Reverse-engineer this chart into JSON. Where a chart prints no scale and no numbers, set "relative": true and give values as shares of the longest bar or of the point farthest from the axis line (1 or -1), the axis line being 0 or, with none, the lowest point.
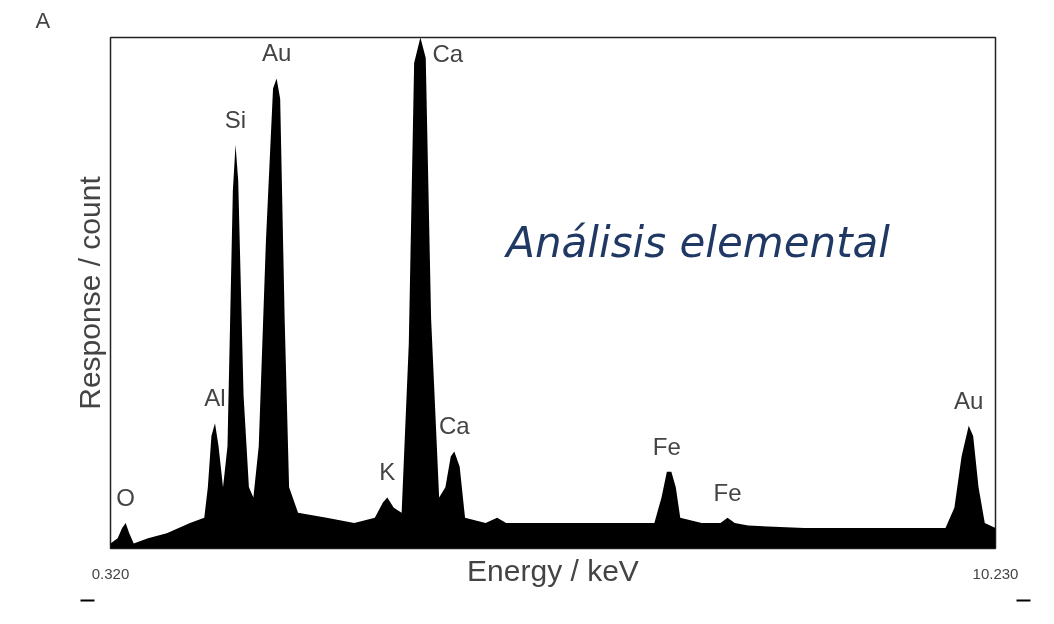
{
  "chart_data": {
    "type": "area",
    "relative": true,
    "xlabel": "Energy / keV",
    "ylabel": "Response / count",
    "xlim": [
      0.32,
      10.23
    ],
    "xticks": [
      {
        "value": 0.32,
        "label": "0.320"
      },
      {
        "value": 10.23,
        "label": "10.230"
      }
    ],
    "x": [
      0.32,
      0.4,
      0.45,
      0.49,
      0.53,
      0.58,
      0.74,
      0.95,
      1.21,
      1.37,
      1.41,
      1.45,
      1.49,
      1.53,
      1.58,
      1.63,
      1.69,
      1.72,
      1.75,
      1.81,
      1.87,
      1.92,
      1.98,
      2.06,
      2.14,
      2.18,
      2.22,
      2.27,
      2.32,
      2.42,
      2.74,
      3.05,
      3.28,
      3.37,
      3.42,
      3.49,
      3.58,
      3.66,
      3.72,
      3.79,
      3.85,
      3.91,
      4.0,
      4.07,
      4.13,
      4.17,
      4.23,
      4.29,
      4.52,
      4.65,
      4.75,
      5.05,
      5.47,
      5.99,
      6.41,
      6.49,
      6.55,
      6.6,
      6.65,
      6.7,
      6.94,
      7.15,
      7.23,
      7.31,
      7.46,
      8.09,
      8.61,
      9.25,
      9.67,
      9.77,
      9.85,
      9.93,
      9.98,
      10.04,
      10.11,
      10.23
    ],
    "series": [
      {
        "color": "#000000",
        "values": [
          0.01,
          0.02,
          0.04,
          0.05,
          0.03,
          0.01,
          0.02,
          0.03,
          0.05,
          0.06,
          0.12,
          0.22,
          0.245,
          0.2,
          0.12,
          0.2,
          0.7,
          0.79,
          0.72,
          0.3,
          0.12,
          0.1,
          0.2,
          0.6,
          0.9,
          0.92,
          0.88,
          0.45,
          0.12,
          0.07,
          0.06,
          0.05,
          0.06,
          0.09,
          0.1,
          0.08,
          0.07,
          0.4,
          0.95,
          1.0,
          0.96,
          0.45,
          0.1,
          0.12,
          0.18,
          0.19,
          0.16,
          0.06,
          0.05,
          0.06,
          0.05,
          0.05,
          0.05,
          0.05,
          0.05,
          0.1,
          0.15,
          0.15,
          0.12,
          0.06,
          0.05,
          0.05,
          0.06,
          0.05,
          0.045,
          0.04,
          0.04,
          0.04,
          0.04,
          0.08,
          0.18,
          0.24,
          0.22,
          0.12,
          0.05,
          0.04
        ]
      }
    ],
    "annotations": [
      {
        "text": "O",
        "x": 0.49,
        "y": 0.05
      },
      {
        "text": "Al",
        "x": 1.49,
        "y": 0.245
      },
      {
        "text": "Si",
        "x": 1.72,
        "y": 0.79
      },
      {
        "text": "Au",
        "x": 2.18,
        "y": 0.92
      },
      {
        "text": "K",
        "x": 3.42,
        "y": 0.1
      },
      {
        "text": "Ca",
        "x": 3.79,
        "y": 1.0
      },
      {
        "text": "Ca",
        "x": 4.17,
        "y": 0.19
      },
      {
        "text": "Fe",
        "x": 6.55,
        "y": 0.15
      },
      {
        "text": "Fe",
        "x": 7.23,
        "y": 0.06
      },
      {
        "text": "Au",
        "x": 9.93,
        "y": 0.24
      },
      "A",
      "Análisis elemental"
    ]
  }
}
